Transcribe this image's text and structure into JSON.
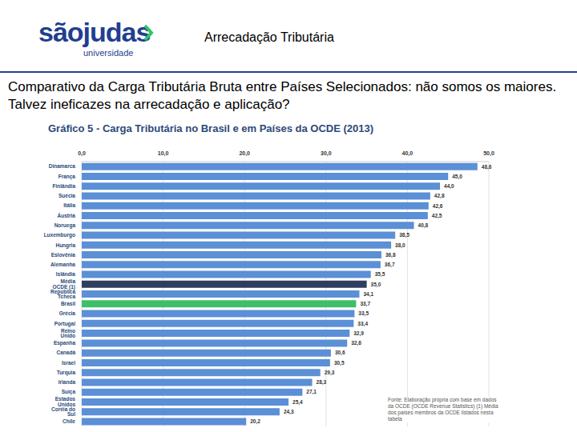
{
  "slide": {
    "logo": "sãojudas",
    "logo_sub": "universidade",
    "heading": "Arrecadação Tributária",
    "subtitle": "Comparativo da Carga Tributária Bruta entre Países Selecionados: não somos os maiores. Talvez ineficazes na arrecadação e aplicação?"
  },
  "chart_data": {
    "type": "bar",
    "orientation": "horizontal",
    "title": "Gráfico 5 - Carga Tributária no Brasil e em Países da OCDE (2013)",
    "note": "Fonte: Elaboração própria com base em dados da OCDE (OCDE Revenue Statistics) (1) Média dos países membros da OCDE listados nesta tabela",
    "categories": [
      "Dinamarca",
      "França",
      "Finlândia",
      "Suécia",
      "Itália",
      "Áustria",
      "Noruega",
      "Luxemburgo",
      "Hungria",
      "Eslovênia",
      "Alemanha",
      "Islândia",
      "Média OCDE (1)",
      "República Tcheca",
      "Brasil",
      "Grécia",
      "Portugal",
      "Reino Unido",
      "Espanha",
      "Canadá",
      "Israel",
      "Turquia",
      "Irlanda",
      "Suíça",
      "Estados Unidos",
      "Coréia do Sul",
      "Chile"
    ],
    "values": [
      48.6,
      45.0,
      44.0,
      42.8,
      42.6,
      42.5,
      40.8,
      38.5,
      38.0,
      36.8,
      36.7,
      35.5,
      35.0,
      34.1,
      33.7,
      33.5,
      33.4,
      32.9,
      32.6,
      30.6,
      30.5,
      29.3,
      28.3,
      27.1,
      25.4,
      24.3,
      20.2
    ],
    "value_labels": [
      "48,6",
      "45,0",
      "44,0",
      "42,8",
      "42,6",
      "42,5",
      "40,8",
      "38,5",
      "38,0",
      "36,8",
      "36,7",
      "35,5",
      "35,0",
      "34,1",
      "33,7",
      "33,5",
      "33,4",
      "32,9",
      "32,6",
      "30,6",
      "30,5",
      "29,3",
      "28,3",
      "27,1",
      "25,4",
      "24,3",
      "20,2"
    ],
    "colors": [
      "#5b8fd6",
      "#5b8fd6",
      "#5b8fd6",
      "#5b8fd6",
      "#5b8fd6",
      "#5b8fd6",
      "#5b8fd6",
      "#5b8fd6",
      "#5b8fd6",
      "#5b8fd6",
      "#5b8fd6",
      "#5b8fd6",
      "#2f3e5f",
      "#5b8fd6",
      "#3dbf6a",
      "#5b8fd6",
      "#5b8fd6",
      "#5b8fd6",
      "#5b8fd6",
      "#5b8fd6",
      "#5b8fd6",
      "#5b8fd6",
      "#5b8fd6",
      "#5b8fd6",
      "#5b8fd6",
      "#5b8fd6",
      "#5b8fd6"
    ],
    "xlim": [
      0,
      50
    ],
    "xticks": [
      {
        "value": 0,
        "label": "0,0"
      },
      {
        "value": 10,
        "label": "10,0"
      },
      {
        "value": 20,
        "label": "20,0"
      },
      {
        "value": 30,
        "label": "30,0"
      },
      {
        "value": 40,
        "label": "40,0"
      },
      {
        "value": 50,
        "label": "50,0"
      }
    ],
    "data_labels": true,
    "grid": true
  }
}
